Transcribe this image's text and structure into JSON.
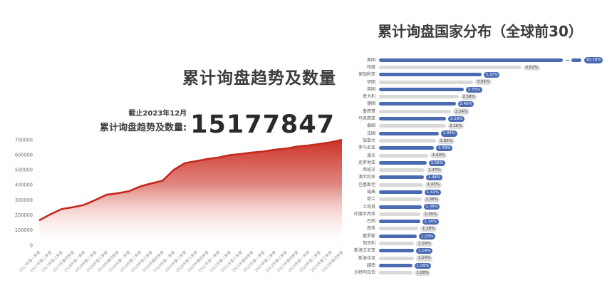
{
  "page": {
    "background": "#ffffff"
  },
  "left_panel": {
    "title": "累计询盘趋势及数量",
    "as_of": "截止2023年12月",
    "total_label": "累计询盘趋势及数量:",
    "total_value": "15177847"
  },
  "right_panel": {
    "title": "累计询盘国家分布（全球前30）"
  },
  "chart_data": [
    {
      "type": "area",
      "title": "累计询盘趋势及数量",
      "xlabel": "",
      "ylabel": "",
      "ylim": [
        0,
        700000
      ],
      "yticks": [
        0,
        100000,
        200000,
        300000,
        400000,
        500000,
        600000,
        700000
      ],
      "grid": false,
      "line_color": "#c5281c",
      "fill_gradient": [
        "#c9281c",
        "#ffffff"
      ],
      "x": [
        "2017年第一季度",
        "2017年第二季度",
        "2017年第三季度",
        "2017年第四季度",
        "2018年第一季度",
        "2018年第二季度",
        "2018年第三季度",
        "2018年第四季度",
        "2019年第一季度",
        "2019年第二季度",
        "2019年第三季度",
        "2019年第四季度",
        "2020年第一季度",
        "2020年第二季度",
        "2020年第三季度",
        "2020年第四季度",
        "2021年第一季度",
        "2021年第二季度",
        "2021年第三季度",
        "2021年第四季度",
        "2022年第一季度",
        "2022年第二季度",
        "2022年第三季度",
        "2022年第四季度",
        "2023年第一季度",
        "2023年第二季度",
        "2023年第三季度",
        "2023年第四季度"
      ],
      "values": [
        165000,
        205000,
        240000,
        252000,
        268000,
        300000,
        335000,
        345000,
        358000,
        390000,
        410000,
        428000,
        500000,
        545000,
        558000,
        572000,
        582000,
        598000,
        606000,
        615000,
        622000,
        634000,
        641000,
        655000,
        662000,
        672000,
        683000,
        700000
      ]
    },
    {
      "type": "bar",
      "orientation": "horizontal",
      "title": "累计询盘国家分布（全球前30）",
      "unit": "%",
      "legend": false,
      "bar_color_blue": "#4a6bb2",
      "bar_color_gray": "#d9d9d9",
      "first_bar_axis_break": true,
      "categories": [
        "美国",
        "印度",
        "保加利亚",
        "伊朗",
        "英国",
        "意大利",
        "德国",
        "墨西哥",
        "马来西亚",
        "泰国",
        "法国",
        "加拿大",
        "罗马尼亚",
        "波兰",
        "克罗地亚",
        "西班牙",
        "澳大利亚",
        "巴基斯坦",
        "瑞典",
        "荷兰",
        "土耳其",
        "印度尼西亚",
        "巴西",
        "南非",
        "俄罗斯",
        "匈牙利",
        "斯洛文尼亚",
        "斯洛伐克",
        "越南",
        "沙特阿拉伯"
      ],
      "values": [
        10.18,
        4.62,
        3.32,
        3.05,
        2.75,
        2.58,
        2.49,
        2.34,
        2.18,
        2.16,
        1.94,
        1.85,
        1.79,
        1.6,
        1.55,
        1.47,
        1.46,
        1.43,
        1.41,
        1.38,
        1.38,
        1.35,
        1.34,
        1.28,
        1.23,
        1.14,
        1.14,
        1.14,
        1.09,
        1.08
      ],
      "labels": [
        "10.18%",
        "4.62%",
        "3.32%",
        "3.05%",
        "2.75%",
        "2.58%",
        "2.49%",
        "2.34%",
        "2.18%",
        "2.16%",
        "1.94%",
        "1.85%",
        "1.79%",
        "1.60%",
        "1.55%",
        "1.47%",
        "1.46%",
        "1.43%",
        "1.41%",
        "1.38%",
        "1.38%",
        "1.35%",
        "1.34%",
        "1.28%",
        "1.23%",
        "1.14%",
        "1.14%",
        "1.14%",
        "1.09%",
        "1.08%"
      ]
    }
  ]
}
